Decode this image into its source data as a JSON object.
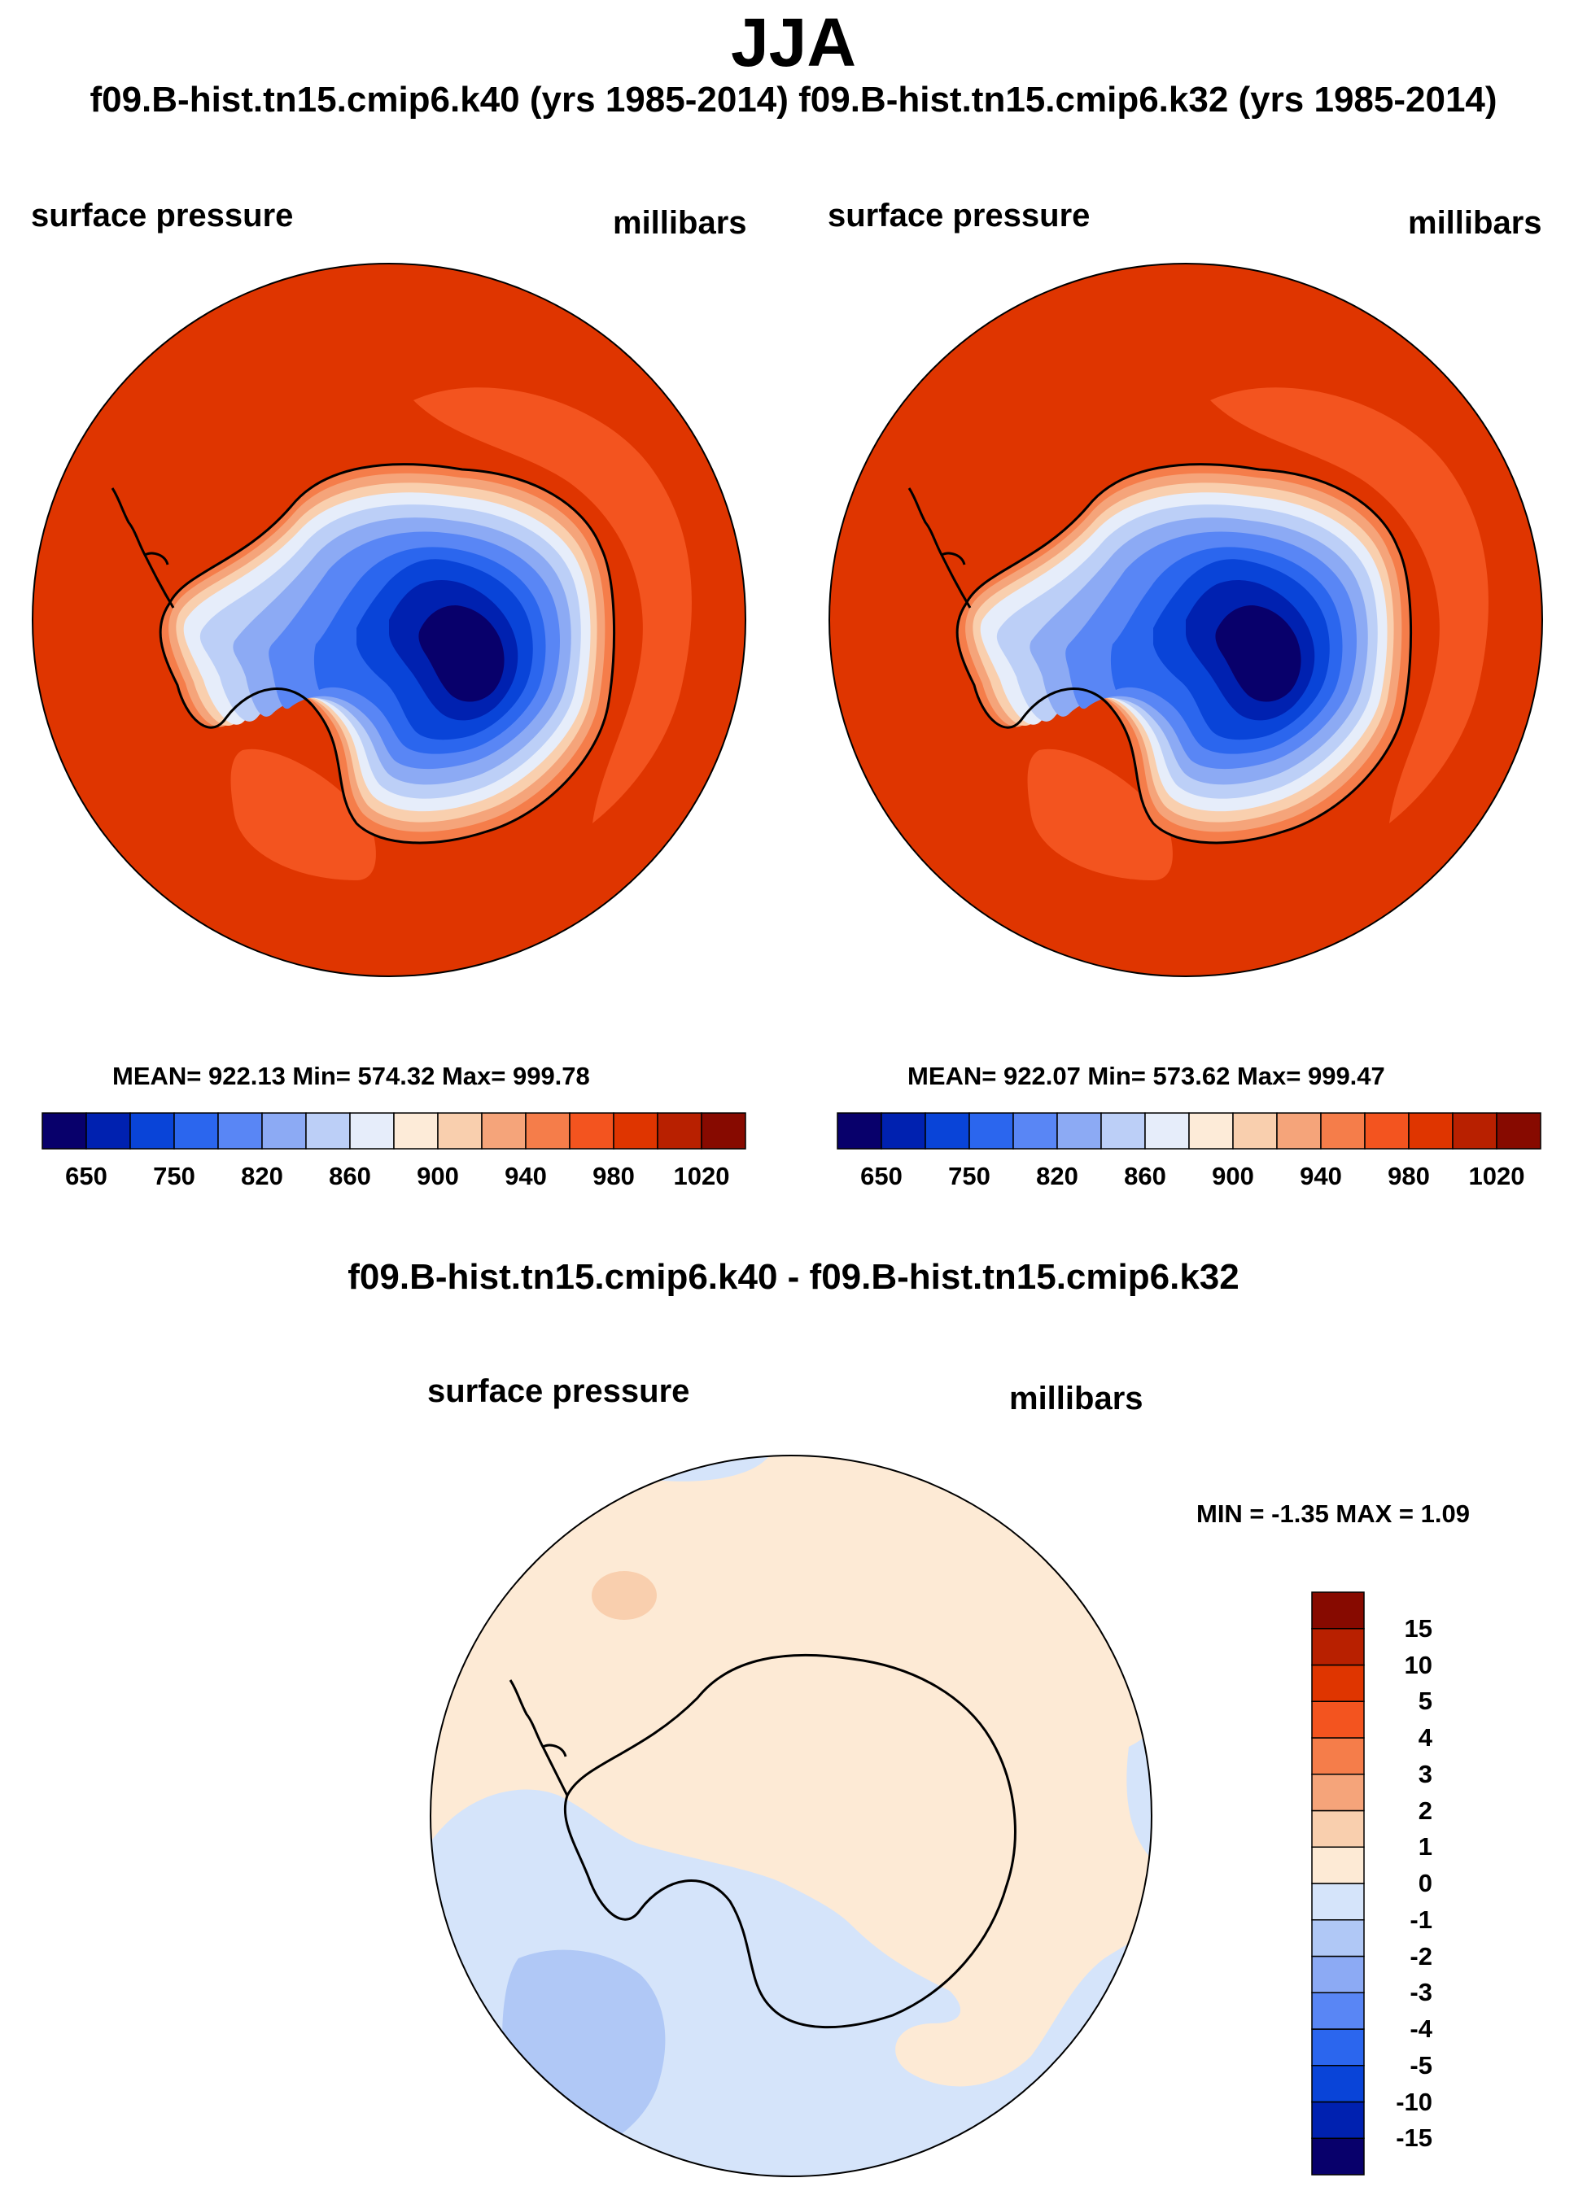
{
  "figure": {
    "title": "JJA",
    "case_titles": "f09.B-hist.tn15.cmip6.k40 (yrs 1985-2014) f09.B-hist.tn15.cmip6.k32 (yrs 1985-2014)",
    "diff_title": "f09.B-hist.tn15.cmip6.k40 - f09.B-hist.tn15.cmip6.k32"
  },
  "colors": {
    "abs_scale": [
      "#08006b",
      "#0021b0",
      "#0944d8",
      "#2b66ee",
      "#5986f5",
      "#8caaf4",
      "#bccff7",
      "#e6edfa",
      "#fdebd8",
      "#f9cfae",
      "#f5a47a",
      "#f57d4a",
      "#f3541f",
      "#df3500",
      "#b82000",
      "#870a00"
    ],
    "diff_scale": [
      "#08006b",
      "#0021b0",
      "#0944d8",
      "#2b66ee",
      "#5986f5",
      "#8caaf4",
      "#b0c8f6",
      "#d5e4fa",
      "#fdead5",
      "#f9cfae",
      "#f5a47a",
      "#f57d4a",
      "#f3541f",
      "#df3500",
      "#b82000",
      "#870a00"
    ],
    "land_outline": "#000000"
  },
  "chart_data": [
    {
      "type": "heatmap",
      "name": "k40 surface pressure (polar stereographic, Antarctica)",
      "case": "f09.B-hist.tn15.cmip6.k40 (yrs 1985-2014)",
      "left_label": "surface pressure",
      "right_label": "millibars",
      "stats_text": "MEAN= 922.13  Min= 574.32  Max= 999.78",
      "mean": 922.13,
      "min": 574.32,
      "max": 999.78,
      "contour_levels": [
        650,
        700,
        750,
        800,
        820,
        840,
        860,
        880,
        900,
        920,
        940,
        960,
        980,
        1000,
        1020
      ],
      "colorbar_tick_labels": [
        "650",
        "750",
        "820",
        "860",
        "900",
        "940",
        "980",
        "1020"
      ]
    },
    {
      "type": "heatmap",
      "name": "k32 surface pressure (polar stereographic, Antarctica)",
      "case": "f09.B-hist.tn15.cmip6.k32 (yrs 1985-2014)",
      "left_label": "surface pressure",
      "right_label": "millibars",
      "stats_text": "MEAN= 922.07  Min= 573.62  Max= 999.47",
      "mean": 922.07,
      "min": 573.62,
      "max": 999.47,
      "contour_levels": [
        650,
        700,
        750,
        800,
        820,
        840,
        860,
        880,
        900,
        920,
        940,
        960,
        980,
        1000,
        1020
      ],
      "colorbar_tick_labels": [
        "650",
        "750",
        "820",
        "860",
        "900",
        "940",
        "980",
        "1020"
      ]
    },
    {
      "type": "heatmap",
      "name": "difference k40 - k32 surface pressure",
      "left_label": "surface pressure",
      "right_label": "millibars",
      "minmax_text": "MIN =  -1.35 MAX =   1.09",
      "min": -1.35,
      "max": 1.09,
      "contour_levels": [
        -15,
        -10,
        -5,
        -4,
        -3,
        -2,
        -1,
        0,
        1,
        2,
        3,
        4,
        5,
        10,
        15
      ],
      "colorbar_tick_labels": [
        "15",
        "10",
        "5",
        "4",
        "3",
        "2",
        "1",
        "0",
        "-1",
        "-2",
        "-3",
        "-4",
        "-5",
        "-10",
        "-15"
      ]
    }
  ]
}
